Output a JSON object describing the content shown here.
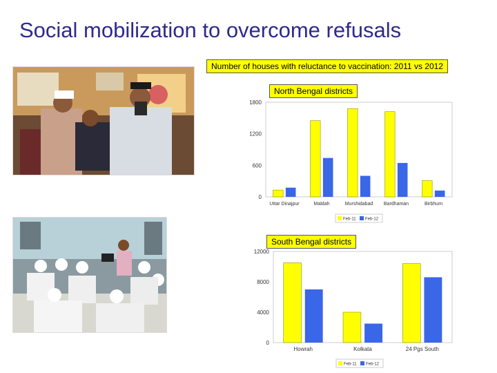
{
  "slide": {
    "title": "Social mobilization to overcome refusals",
    "chart_heading": "Number of houses with reluctance to vaccination: 2011 vs 2012"
  },
  "photos": {
    "top": {
      "subject": "photo-vaccination-at-home"
    },
    "bottom": {
      "subject": "photo-community-meeting"
    }
  },
  "chart_data": [
    {
      "type": "bar",
      "title": "North Bengal districts",
      "categories": [
        "Uttar Dinajpur",
        "Maldah",
        "Murshidabad",
        "Bardhaman",
        "Birbhum"
      ],
      "series": [
        {
          "name": "Feb-11",
          "values": [
            130,
            1450,
            1680,
            1620,
            310
          ],
          "color": "#ffff00"
        },
        {
          "name": "Feb-12",
          "values": [
            175,
            740,
            400,
            645,
            120
          ],
          "color": "#3a66e8"
        }
      ],
      "ylim": [
        0,
        1800
      ],
      "yticks": [
        0,
        600,
        1200,
        1800
      ],
      "legend": "bottom",
      "grid": false
    },
    {
      "type": "bar",
      "title": "South Bengal districts",
      "categories": [
        "Howrah",
        "Kolkata",
        "24 Pgs South"
      ],
      "series": [
        {
          "name": "Feb-11",
          "values": [
            10500,
            4000,
            10400
          ],
          "color": "#ffff00"
        },
        {
          "name": "Feb-12",
          "values": [
            7000,
            2500,
            8600
          ],
          "color": "#3a66e8"
        }
      ],
      "ylim": [
        0,
        12000
      ],
      "yticks": [
        0,
        4000,
        8000,
        12000
      ],
      "legend": "bottom",
      "grid": false
    }
  ]
}
